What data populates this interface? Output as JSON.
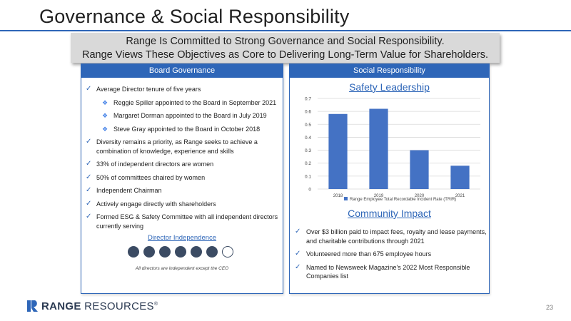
{
  "slide": {
    "title": "Governance & Social Responsibility",
    "page_number": "23"
  },
  "banner": {
    "line1": "Range Is Committed to Strong Governance and Social Responsibility.",
    "line2": "Range Views These Objectives as Core to Delivering Long-Term Value for Shareholders."
  },
  "board": {
    "header": "Board Governance",
    "tenure": "Average Director tenure of five years",
    "appointments": [
      "Reggie Spiller appointed to the Board in September 2021",
      "Margaret Dorman appointed to the Board in July 2019",
      "Steve Gray appointed to the Board in October 2018"
    ],
    "bullets": [
      "Diversity remains a priority, as Range seeks to achieve a combination of knowledge, experience and skills",
      "33% of independent directors are women",
      "50% of committees chaired by women",
      "Independent Chairman",
      "Actively engage directly with shareholders",
      "Formed ESG & Safety Committee with all independent directors currently serving"
    ],
    "independence_title": "Director Independence",
    "independent_directors": 6,
    "total_directors": 7,
    "independence_caption": "All directors are independent except the CEO"
  },
  "social": {
    "header": "Social Responsibility",
    "safety_title": "Safety Leadership",
    "community_title": "Community Impact",
    "community_bullets": [
      "Over $3 billion paid to impact fees, royalty and lease payments, and charitable contributions through 2021",
      "Volunteered more than 675 employee hours",
      "Named to Newsweek Magazine's 2022 Most Responsible Companies list"
    ]
  },
  "chart_data": {
    "type": "bar",
    "categories": [
      "2018",
      "2019",
      "2020",
      "2021"
    ],
    "series": [
      {
        "name": "Range Employee Total Recordable Incident Rate (TRIR)",
        "values": [
          0.58,
          0.62,
          0.3,
          0.18
        ]
      }
    ],
    "ylim": [
      0,
      0.7
    ],
    "yticks": [
      "0",
      "0.1",
      "0.2",
      "0.3",
      "0.4",
      "0.5",
      "0.6",
      "0.7"
    ],
    "grid": true,
    "legend_position": "bottom",
    "bar_color": "#4472c4"
  },
  "footer": {
    "logo_bold": "RANGE",
    "logo_rest": " RESOURCES",
    "registered": "®"
  },
  "colors": {
    "accent": "#2e66b8",
    "dot_fill": "#3b4b63"
  },
  "icons": {
    "bullet": "check-icon",
    "sub_bullet": "diamond-icon"
  }
}
